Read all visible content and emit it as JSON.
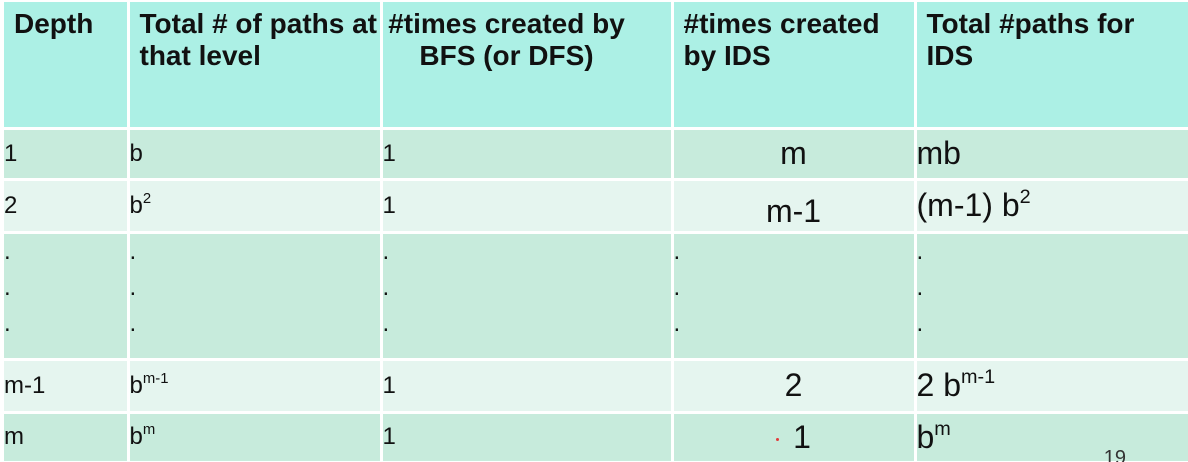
{
  "table": {
    "headers": [
      "Depth",
      "Total # of paths at that level",
      "#times created by BFS (or DFS)",
      "#times created by IDS",
      "Total #paths for IDS"
    ],
    "rows": [
      {
        "depth": "1",
        "paths": "b",
        "paths_exp": "",
        "bfs": "1",
        "ids": "m",
        "total": "mb",
        "total_exp": ""
      },
      {
        "depth": "2",
        "paths": "b",
        "paths_exp": "2",
        "bfs": "1",
        "ids": "m-1",
        "total": "(m-1) b",
        "total_exp": "2"
      },
      {
        "depth": ".",
        "paths": ".",
        "paths_exp": "",
        "bfs": ".",
        "ids": ".",
        "total": ".",
        "total_exp": ""
      },
      {
        "depth": "m-1",
        "paths": "b",
        "paths_exp": "m-1",
        "bfs": "1",
        "ids": "2",
        "total": "2 b",
        "total_exp": "m-1"
      },
      {
        "depth": "m",
        "paths": "b",
        "paths_exp": "m",
        "bfs": "1",
        "ids": "1",
        "total": "b",
        "total_exp": "m"
      }
    ]
  },
  "page_number": "19"
}
